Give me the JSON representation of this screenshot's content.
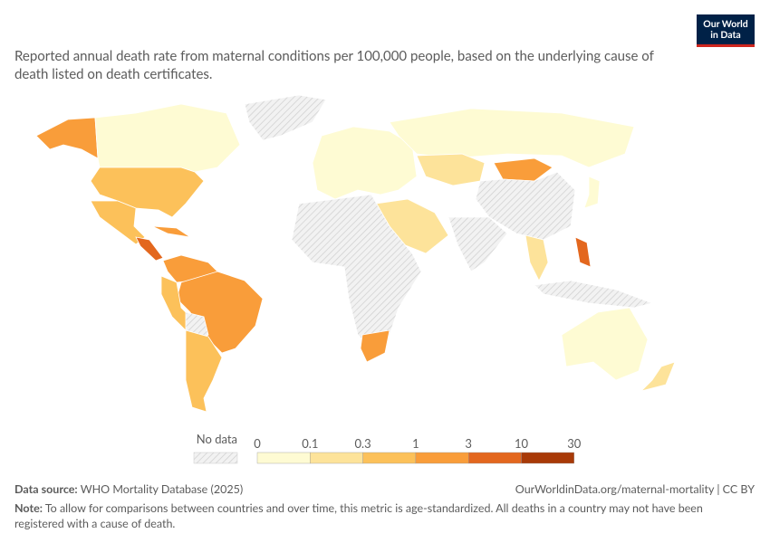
{
  "logo": {
    "line1": "Our World",
    "line2": "in Data"
  },
  "title": "Reported annual death rate from maternal conditions per 100,000 people, based on the underlying cause of death listed on death certificates.",
  "legend": {
    "no_data": "No data",
    "ticks": [
      0,
      0.1,
      0.3,
      1,
      3,
      10,
      30
    ],
    "colors": [
      "#fefbd3",
      "#fde39a",
      "#fcc15a",
      "#f99d3a",
      "#e3671e",
      "#a83a08"
    ]
  },
  "footer": {
    "source_label": "Data source:",
    "source": "WHO Mortality Database (2025)",
    "url": "OurWorldinData.org/maternal-mortality | CC BY",
    "note_label": "Note:",
    "note": "To allow for comparisons between countries and over time, this metric is age-standardized. All deaths in a country may not have been registered with a cause of death."
  }
}
